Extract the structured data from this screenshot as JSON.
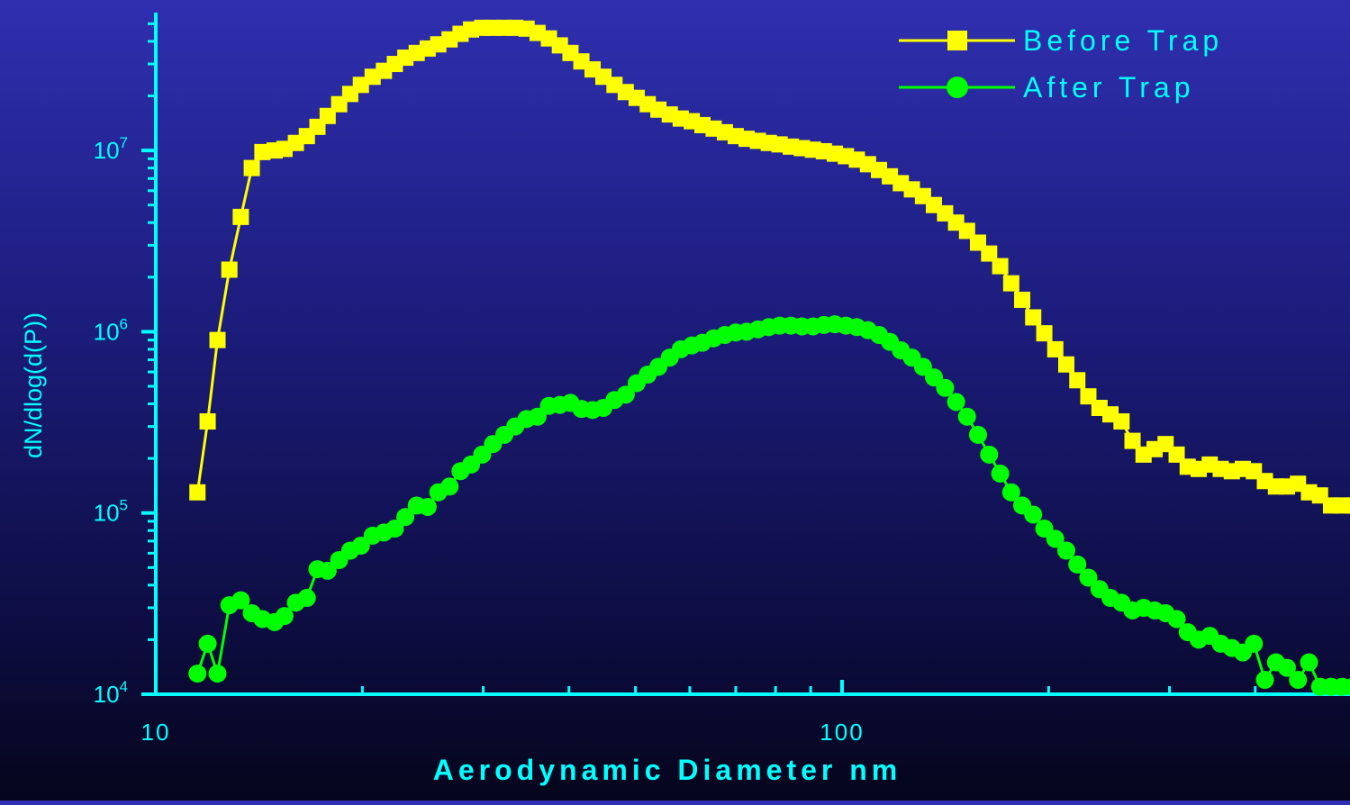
{
  "chart_data": {
    "type": "line",
    "xlabel": "Aerodynamic Diameter nm",
    "ylabel": "dN/dlog(d(P))",
    "x_scale": "log",
    "y_scale": "log",
    "xlim": [
      10,
      600
    ],
    "ylim": [
      10000,
      63000000
    ],
    "x_ticks": [
      10,
      100
    ],
    "x_tick_labels": [
      "10",
      "100"
    ],
    "y_ticks": [
      10000,
      100000,
      1000000,
      10000000
    ],
    "y_tick_labels": [
      {
        "base": "10",
        "exp": "4"
      },
      {
        "base": "10",
        "exp": "5"
      },
      {
        "base": "10",
        "exp": "6"
      },
      {
        "base": "10",
        "exp": "7"
      }
    ],
    "legend": "top-right",
    "grid": false,
    "colors": {
      "axis": "#00ffff",
      "label": "#00ffff",
      "legend_text": "#00ffff"
    },
    "series": [
      {
        "name": "Before Trap",
        "color": "#ffff00",
        "marker": "square",
        "x": [
          11.5,
          11.9,
          12.3,
          12.8,
          13.3,
          13.8,
          14.3,
          14.9,
          15.4,
          16.0,
          16.6,
          17.2,
          17.8,
          18.5,
          19.2,
          19.9,
          20.7,
          21.5,
          22.3,
          23.1,
          24.0,
          24.9,
          25.8,
          26.8,
          27.8,
          28.8,
          29.9,
          31.0,
          32.2,
          33.4,
          34.7,
          36.0,
          37.4,
          38.8,
          40.2,
          41.7,
          43.3,
          44.9,
          46.6,
          48.4,
          50.2,
          52.1,
          54.0,
          56.1,
          58.2,
          60.4,
          62.6,
          65.0,
          67.5,
          70.0,
          72.6,
          75.4,
          78.2,
          81.1,
          84.2,
          87.4,
          90.7,
          94.1,
          97.6,
          101.3,
          105.1,
          109.1,
          113.2,
          117.4,
          121.8,
          126.4,
          131.2,
          136.1,
          141.3,
          146.6,
          152.1,
          157.8,
          163.8,
          170.0,
          176.4,
          183.0,
          189.9,
          197.1,
          204.5,
          212.2,
          220.2,
          228.5,
          237.2,
          246.1,
          255.4,
          265.0,
          275.0,
          285.4,
          296.1,
          307.3,
          318.9,
          330.9,
          343.4,
          356.3,
          369.8,
          383.7,
          398.2,
          413.2,
          428.8,
          444.9,
          461.7,
          479.1,
          497.2,
          515.9,
          535.4,
          555.6
        ],
        "y": [
          130000,
          320000,
          900000,
          2200000,
          4300000,
          8000000,
          9800000,
          10000000,
          10200000,
          11000000,
          12000000,
          13500000,
          15500000,
          18000000,
          20500000,
          23000000,
          25500000,
          27500000,
          30000000,
          32500000,
          34500000,
          36500000,
          38500000,
          41000000,
          44000000,
          46500000,
          47500000,
          47500000,
          47500000,
          47500000,
          47000000,
          44500000,
          41500000,
          38000000,
          34500000,
          31000000,
          28000000,
          25500000,
          23000000,
          21000000,
          19500000,
          18000000,
          16800000,
          15800000,
          15000000,
          14500000,
          13800000,
          13200000,
          12600000,
          12000000,
          11600000,
          11300000,
          11000000,
          10800000,
          10500000,
          10300000,
          10100000,
          9900000,
          9600000,
          9300000,
          8900000,
          8400000,
          7800000,
          7200000,
          6600000,
          6100000,
          5600000,
          5000000,
          4500000,
          4000000,
          3600000,
          3100000,
          2700000,
          2300000,
          1850000,
          1500000,
          1200000,
          980000,
          800000,
          660000,
          540000,
          440000,
          380000,
          350000,
          320000,
          250000,
          210000,
          225000,
          240000,
          210000,
          180000,
          175000,
          185000,
          175000,
          170000,
          175000,
          170000,
          150000,
          140000,
          140000,
          145000,
          130000,
          125000,
          110000,
          110000,
          110000
        ],
        "hidden_tail_note": ""
      },
      {
        "name": "After Trap",
        "color": "#00ff00",
        "marker": "circle",
        "x": [
          11.5,
          11.9,
          12.3,
          12.8,
          13.3,
          13.8,
          14.3,
          14.9,
          15.4,
          16.0,
          16.6,
          17.2,
          17.8,
          18.5,
          19.2,
          19.9,
          20.7,
          21.5,
          22.3,
          23.1,
          24.0,
          24.9,
          25.8,
          26.8,
          27.8,
          28.8,
          29.9,
          31.0,
          32.2,
          33.4,
          34.7,
          36.0,
          37.4,
          38.8,
          40.2,
          41.7,
          43.3,
          44.9,
          46.6,
          48.4,
          50.2,
          52.1,
          54.0,
          56.1,
          58.2,
          60.4,
          62.6,
          65.0,
          67.5,
          70.0,
          72.6,
          75.4,
          78.2,
          81.1,
          84.2,
          87.4,
          90.7,
          94.1,
          97.6,
          101.3,
          105.1,
          109.1,
          113.2,
          117.4,
          121.8,
          126.4,
          131.2,
          136.1,
          141.3,
          146.6,
          152.1,
          157.8,
          163.8,
          170.0,
          176.4,
          183.0,
          189.9,
          197.1,
          204.5,
          212.2,
          220.2,
          228.5,
          237.2,
          246.1,
          255.4,
          265.0,
          275.0,
          285.4,
          296.1,
          307.3,
          318.9,
          330.9,
          343.4,
          356.3,
          369.8,
          383.7,
          398.2,
          413.2,
          428.8,
          444.9,
          461.7,
          479.1,
          497.2,
          515.9,
          535.4,
          555.6
        ],
        "y": [
          13000,
          19000,
          13000,
          31000,
          33000,
          28000,
          26000,
          25000,
          27000,
          32000,
          34000,
          49000,
          48000,
          55000,
          62000,
          66000,
          75000,
          78000,
          82000,
          95000,
          110000,
          108000,
          130000,
          140000,
          170000,
          185000,
          210000,
          240000,
          270000,
          300000,
          330000,
          340000,
          390000,
          395000,
          405000,
          375000,
          370000,
          380000,
          420000,
          450000,
          520000,
          580000,
          640000,
          720000,
          800000,
          840000,
          870000,
          920000,
          960000,
          990000,
          1000000,
          1030000,
          1060000,
          1080000,
          1080000,
          1070000,
          1070000,
          1090000,
          1100000,
          1080000,
          1060000,
          1020000,
          960000,
          880000,
          790000,
          720000,
          640000,
          560000,
          490000,
          410000,
          340000,
          270000,
          210000,
          165000,
          130000,
          110000,
          98000,
          82000,
          72000,
          62000,
          52000,
          44000,
          38000,
          34000,
          32000,
          29000,
          30000,
          29000,
          28000,
          26000,
          22000,
          20000,
          21000,
          19000,
          18000,
          17000,
          19000,
          12000,
          15000,
          14000,
          12000,
          15000,
          11000,
          11000,
          11000,
          11000
        ],
        "hidden_tail_note": ""
      }
    ]
  }
}
